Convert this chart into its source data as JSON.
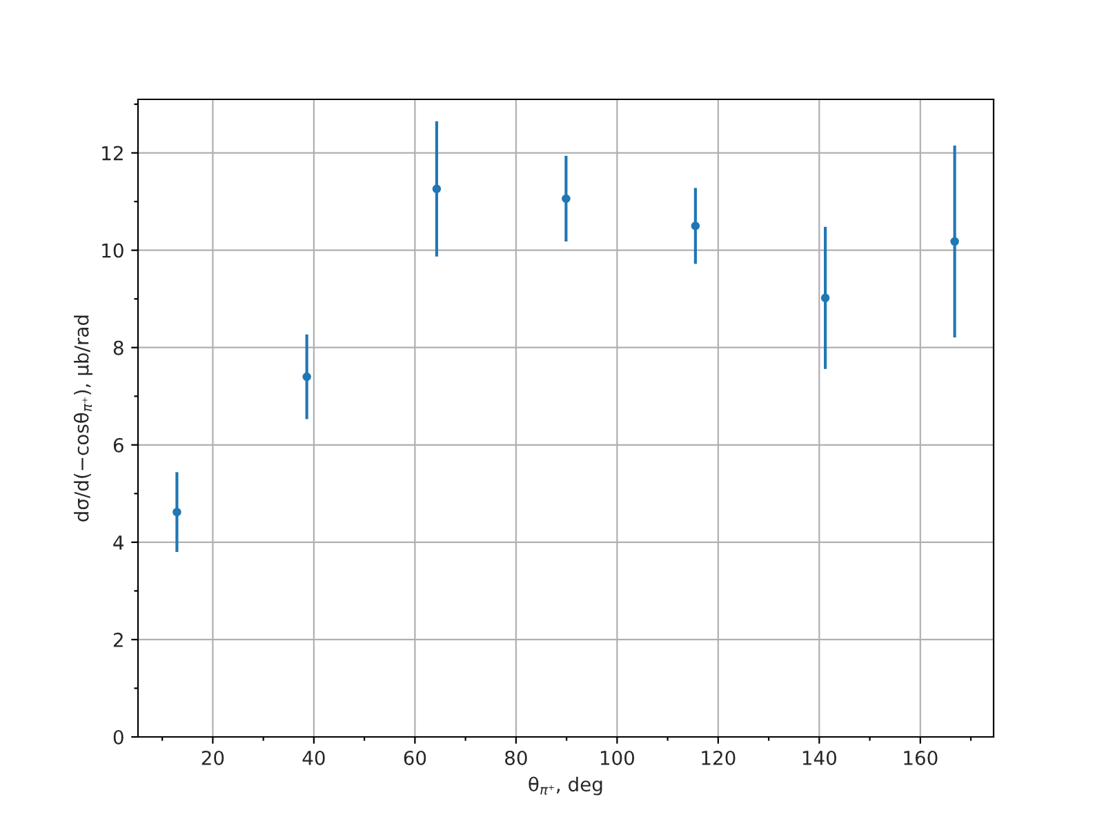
{
  "chart_data": {
    "type": "scatter",
    "xlabel": "θ$_{π⁺}$, deg",
    "ylabel": "dσ/d(−cosθ$_{π⁺}$), μb/rad",
    "x": [
      12.9,
      38.6,
      64.3,
      89.9,
      115.5,
      141.2,
      166.8
    ],
    "series": [
      {
        "color": "#1f77b4",
        "values": [
          4.62,
          7.4,
          11.26,
          11.06,
          10.5,
          9.02,
          10.18
        ],
        "errors": [
          0.82,
          0.87,
          1.39,
          0.88,
          0.78,
          1.46,
          1.97
        ]
      }
    ],
    "xlim": [
      5.2,
      174.5
    ],
    "ylim": [
      0,
      13.1
    ],
    "xticks": [
      20,
      40,
      60,
      80,
      100,
      120,
      140,
      160
    ],
    "yticks": [
      0,
      2,
      4,
      6,
      8,
      10,
      12
    ],
    "grid": true,
    "marker": "circle"
  }
}
